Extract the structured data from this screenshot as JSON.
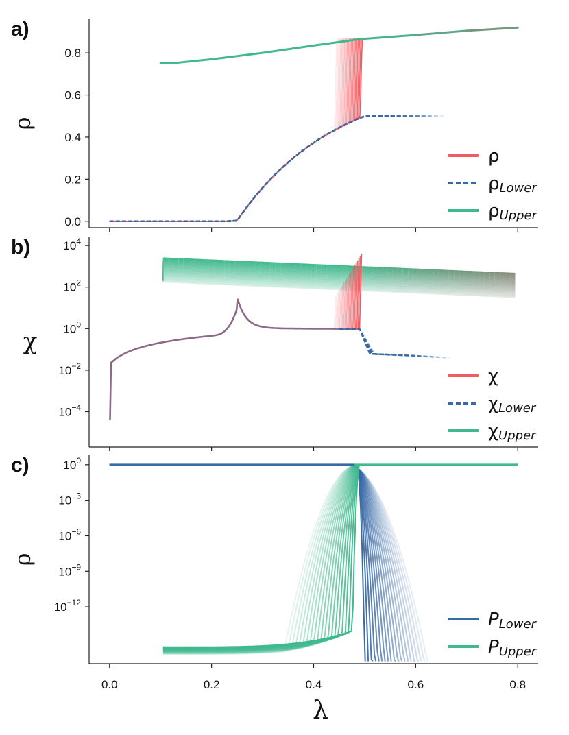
{
  "colors": {
    "red": "#f25b61",
    "blue": "#3a6aa6",
    "green": "#41b98e",
    "gray": "#8a8a7a"
  },
  "chart_data": [
    {
      "type": "line",
      "panel_tag": "a)",
      "ylabel": "ρ",
      "yscale": "linear",
      "ylim": [
        -0.03,
        0.96
      ],
      "yticks": [
        0.0,
        0.2,
        0.4,
        0.6,
        0.8
      ],
      "ytick_labels": [
        "0.0",
        "0.2",
        "0.4",
        "0.6",
        "0.8"
      ],
      "xlim": [
        -0.04,
        0.84
      ],
      "legend": {
        "position": "lower-right",
        "items": [
          {
            "symbol": "ρ",
            "sub": "",
            "color": "#f25b61",
            "dashed": false
          },
          {
            "symbol": "ρ",
            "sub": "Lower",
            "color": "#3a6aa6",
            "dashed": true
          },
          {
            "symbol": "ρ",
            "sub": "Upper",
            "color": "#41b98e",
            "dashed": false
          }
        ]
      },
      "series": [
        {
          "name": "ρ",
          "x": [
            0.0,
            0.1,
            0.2,
            0.25,
            0.3,
            0.35,
            0.4,
            0.45,
            0.48,
            0.49
          ],
          "y": [
            0.0,
            0.0,
            0.0,
            0.003,
            0.12,
            0.25,
            0.35,
            0.43,
            0.47,
            0.87
          ]
        },
        {
          "name": "ρ Lower",
          "x": [
            0.0,
            0.1,
            0.2,
            0.25,
            0.3,
            0.35,
            0.4,
            0.45,
            0.5,
            0.55,
            0.6,
            0.66
          ],
          "y": [
            0.0,
            0.0,
            0.0,
            0.003,
            0.12,
            0.25,
            0.35,
            0.43,
            0.49,
            0.5,
            0.5,
            0.5
          ]
        },
        {
          "name": "ρ Upper",
          "x": [
            0.1,
            0.12,
            0.2,
            0.3,
            0.4,
            0.49,
            0.6,
            0.7,
            0.8
          ],
          "y": [
            0.75,
            0.75,
            0.77,
            0.8,
            0.835,
            0.865,
            0.885,
            0.905,
            0.92
          ]
        }
      ]
    },
    {
      "type": "line",
      "panel_tag": "b)",
      "ylabel": "χ",
      "yscale": "log",
      "ylim_log10": [
        -5.7,
        4.4
      ],
      "yticks_log10": [
        4,
        2,
        0,
        -2,
        -4
      ],
      "ytick_labels": [
        [
          "10",
          "4"
        ],
        [
          "10",
          "2"
        ],
        [
          "10",
          "0"
        ],
        [
          "10",
          "−2"
        ],
        [
          "10",
          "−4"
        ]
      ],
      "xlim": [
        -0.04,
        0.84
      ],
      "legend": {
        "position": "lower-right",
        "items": [
          {
            "symbol": "χ",
            "sub": "",
            "color": "#f25b61",
            "dashed": false
          },
          {
            "symbol": "χ",
            "sub": "Lower",
            "color": "#3a6aa6",
            "dashed": true
          },
          {
            "symbol": "χ",
            "sub": "Upper",
            "color": "#41b98e",
            "dashed": false
          }
        ]
      },
      "series": [
        {
          "name": "χ",
          "x": [
            0.002,
            0.01,
            0.05,
            0.1,
            0.15,
            0.2,
            0.23,
            0.25,
            0.27,
            0.3,
            0.35,
            0.4,
            0.45,
            0.48,
            0.49
          ],
          "y_log10": [
            -5.5,
            -1.8,
            -1.0,
            -0.6,
            -0.35,
            0.0,
            0.4,
            1.5,
            0.5,
            0.15,
            0.08,
            0.05,
            0.0,
            -0.02,
            3.6
          ]
        },
        {
          "name": "χ Lower",
          "x": [
            0.45,
            0.48,
            0.49,
            0.5,
            0.51,
            0.55,
            0.6,
            0.66
          ],
          "y_log10": [
            0.0,
            -0.02,
            -0.05,
            -0.5,
            -1.2,
            -1.4,
            -1.5,
            -1.6
          ]
        },
        {
          "name": "χ Upper",
          "x": [
            0.105,
            0.2,
            0.3,
            0.4,
            0.5,
            0.6,
            0.7,
            0.8
          ],
          "y_log10": [
            3.4,
            3.3,
            3.2,
            3.1,
            3.0,
            2.9,
            2.75,
            2.65
          ]
        }
      ]
    },
    {
      "type": "line",
      "panel_tag": "c)",
      "ylabel": "ρ",
      "yscale": "log",
      "ylim_log10": [
        -16.8,
        0.8
      ],
      "yticks_log10": [
        0,
        -3,
        -6,
        -9,
        -12
      ],
      "ytick_labels": [
        [
          "10",
          "0"
        ],
        [
          "10",
          "−3"
        ],
        [
          "10",
          "−6"
        ],
        [
          "10",
          "−9"
        ],
        [
          "10",
          "−12"
        ]
      ],
      "xlim": [
        -0.04,
        0.84
      ],
      "xticks": [
        0.0,
        0.2,
        0.4,
        0.6,
        0.8
      ],
      "xtick_labels": [
        "0.0",
        "0.2",
        "0.4",
        "0.6",
        "0.8"
      ],
      "xlabel": "λ",
      "legend": {
        "position": "lower-right",
        "items": [
          {
            "symbol": "P",
            "sub": "Lower",
            "color": "#3a6aa6",
            "dashed": false
          },
          {
            "symbol": "P",
            "sub": "Upper",
            "color": "#41b98e",
            "dashed": false
          }
        ]
      },
      "series": [
        {
          "name": "P Lower",
          "x": [
            0.0,
            0.2,
            0.4,
            0.47,
            0.48,
            0.49,
            0.5,
            0.51,
            0.52
          ],
          "y_log10": [
            0,
            0,
            0,
            0,
            -1,
            -4,
            -9,
            -14,
            -16.0
          ]
        },
        {
          "name": "P Upper",
          "x": [
            0.105,
            0.2,
            0.3,
            0.4,
            0.45,
            0.48,
            0.49,
            0.6,
            0.8
          ],
          "y_log10": [
            -16.0,
            -15.8,
            -15.5,
            -14.8,
            -13.8,
            -12.3,
            0,
            0,
            0
          ]
        }
      ]
    }
  ]
}
